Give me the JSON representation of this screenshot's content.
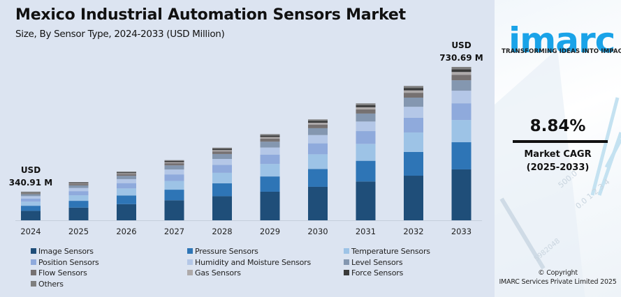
{
  "header": {
    "title": "Mexico Industrial Automation Sensors Market",
    "subtitle": "Size, By Sensor Type, 2024-2033 (USD Million)"
  },
  "sidebar": {
    "logo_text": "imarc",
    "tagline": "TRANSFORMING IDEAS INTO IMPACT",
    "cagr_value": "8.84%",
    "cagr_label_line1": "Market CAGR",
    "cagr_label_line2": "(2025-2033)",
    "copyright_line1": "© Copyright",
    "copyright_line2": "IMARC Services Private Limited 2025",
    "brand_color": "#1aa3e8"
  },
  "chart_data": {
    "type": "bar",
    "stacked": true,
    "title": "Mexico Industrial Automation Sensors Market",
    "subtitle": "Size, By Sensor Type, 2024-2033 (USD Million)",
    "xlabel": "",
    "ylabel": "",
    "grid": false,
    "legend_position": "bottom",
    "categories": [
      "2024",
      "2025",
      "2026",
      "2027",
      "2028",
      "2029",
      "2030",
      "2031",
      "2032",
      "2033"
    ],
    "totals": [
      340.91,
      371.05,
      403.85,
      439.55,
      478.4,
      520.7,
      566.7,
      616.8,
      671.3,
      730.69
    ],
    "annotations": [
      {
        "category": "2024",
        "line1": "USD",
        "line2": "340.91 M"
      },
      {
        "category": "2033",
        "line1": "USD",
        "line2": "730.69 M"
      }
    ],
    "series": [
      {
        "name": "Image Sensors",
        "color": "#1f4e79",
        "share": 0.332
      },
      {
        "name": "Pressure Sensors",
        "color": "#2e75b6",
        "share": 0.177
      },
      {
        "name": "Temperature Sensors",
        "color": "#9dc3e6",
        "share": 0.145
      },
      {
        "name": "Position Sensors",
        "color": "#8faadc",
        "share": 0.109
      },
      {
        "name": "Humidity and Moisture Sensors",
        "color": "#b4c7e7",
        "share": 0.082
      },
      {
        "name": "Level Sensors",
        "color": "#8497b0",
        "share": 0.068
      },
      {
        "name": "Flow Sensors",
        "color": "#767171",
        "share": 0.036
      },
      {
        "name": "Gas Sensors",
        "color": "#aeaaaa",
        "share": 0.018
      },
      {
        "name": "Force Sensors",
        "color": "#3a3a3a",
        "share": 0.018
      },
      {
        "name": "Others",
        "color": "#7f7f7f",
        "share": 0.015
      }
    ]
  }
}
